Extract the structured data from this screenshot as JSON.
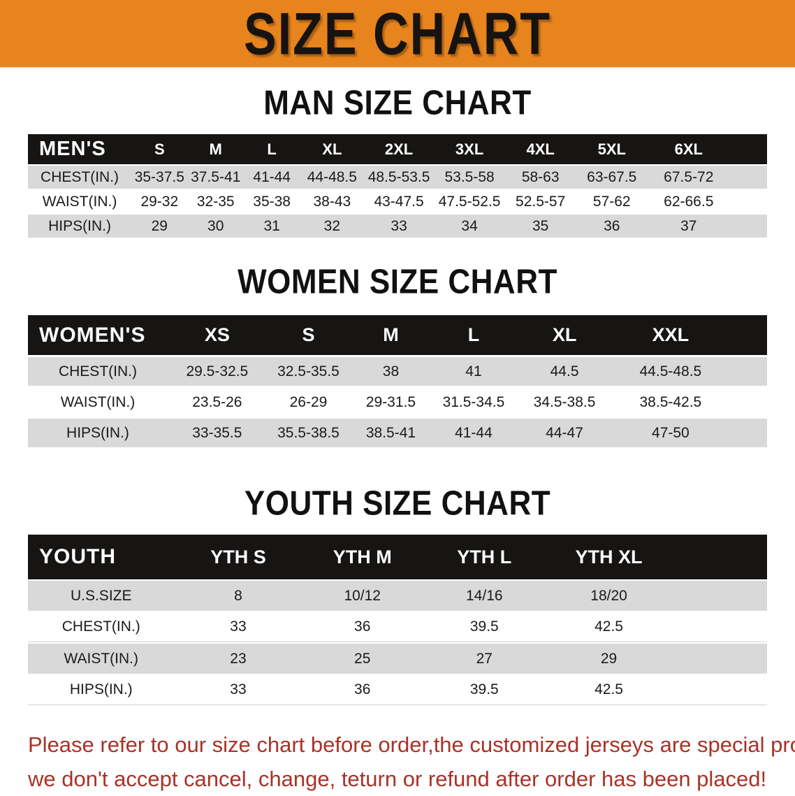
{
  "banner": {
    "title": "SIZE CHART"
  },
  "colors": {
    "banner_bg": "#E8841E",
    "header_band_bg": "#161514",
    "row_gray": "#D9D9D9",
    "disclaimer_red": "#A93228"
  },
  "sections": [
    {
      "id": "mens",
      "heading": "MAN SIZE CHART",
      "table": {
        "label": "MEN'S",
        "columns": [
          "S",
          "M",
          "L",
          "XL",
          "2XL",
          "3XL",
          "4XL",
          "5XL",
          "6XL"
        ],
        "rows": [
          {
            "label": "CHEST(IN.)",
            "values": [
              "35-37.5",
              "37.5-41",
              "41-44",
              "44-48.5",
              "48.5-53.5",
              "53.5-58",
              "58-63",
              "63-67.5",
              "67.5-72"
            ]
          },
          {
            "label": "WAIST(IN.)",
            "values": [
              "29-32",
              "32-35",
              "35-38",
              "38-43",
              "43-47.5",
              "47.5-52.5",
              "52.5-57",
              "57-62",
              "62-66.5"
            ]
          },
          {
            "label": "HIPS(IN.)",
            "values": [
              "29",
              "30",
              "31",
              "32",
              "33",
              "34",
              "35",
              "36",
              "37"
            ]
          }
        ]
      }
    },
    {
      "id": "womens",
      "heading": "WOMEN SIZE CHART",
      "table": {
        "label": "WOMEN'S",
        "columns": [
          "XS",
          "S",
          "M",
          "L",
          "XL",
          "XXL"
        ],
        "rows": [
          {
            "label": "CHEST(IN.)",
            "values": [
              "29.5-32.5",
              "32.5-35.5",
              "38",
              "41",
              "44.5",
              "44.5-48.5"
            ]
          },
          {
            "label": "WAIST(IN.)",
            "values": [
              "23.5-26",
              "26-29",
              "29-31.5",
              "31.5-34.5",
              "34.5-38.5",
              "38.5-42.5"
            ]
          },
          {
            "label": "HIPS(IN.)",
            "values": [
              "33-35.5",
              "35.5-38.5",
              "38.5-41",
              "41-44",
              "44-47",
              "47-50"
            ]
          }
        ]
      }
    },
    {
      "id": "youth",
      "heading": "YOUTH SIZE CHART",
      "table": {
        "label": "YOUTH",
        "columns": [
          "YTH S",
          "YTH M",
          "YTH L",
          "YTH XL"
        ],
        "rows": [
          {
            "label": "U.S.SIZE",
            "values": [
              "8",
              "10/12",
              "14/16",
              "18/20"
            ]
          },
          {
            "label": "CHEST(IN.)",
            "values": [
              "33",
              "36",
              "39.5",
              "42.5"
            ]
          },
          {
            "label": "WAIST(IN.)",
            "values": [
              "23",
              "25",
              "27",
              "29"
            ]
          },
          {
            "label": "HIPS(IN.)",
            "values": [
              "33",
              "36",
              "39.5",
              "42.5"
            ]
          }
        ]
      }
    }
  ],
  "disclaimer": {
    "line1": "Please refer to our size chart before order,the customized jerseys are special products,",
    "line2": "we don't accept cancel, change, teturn or refund after order has been placed!"
  }
}
